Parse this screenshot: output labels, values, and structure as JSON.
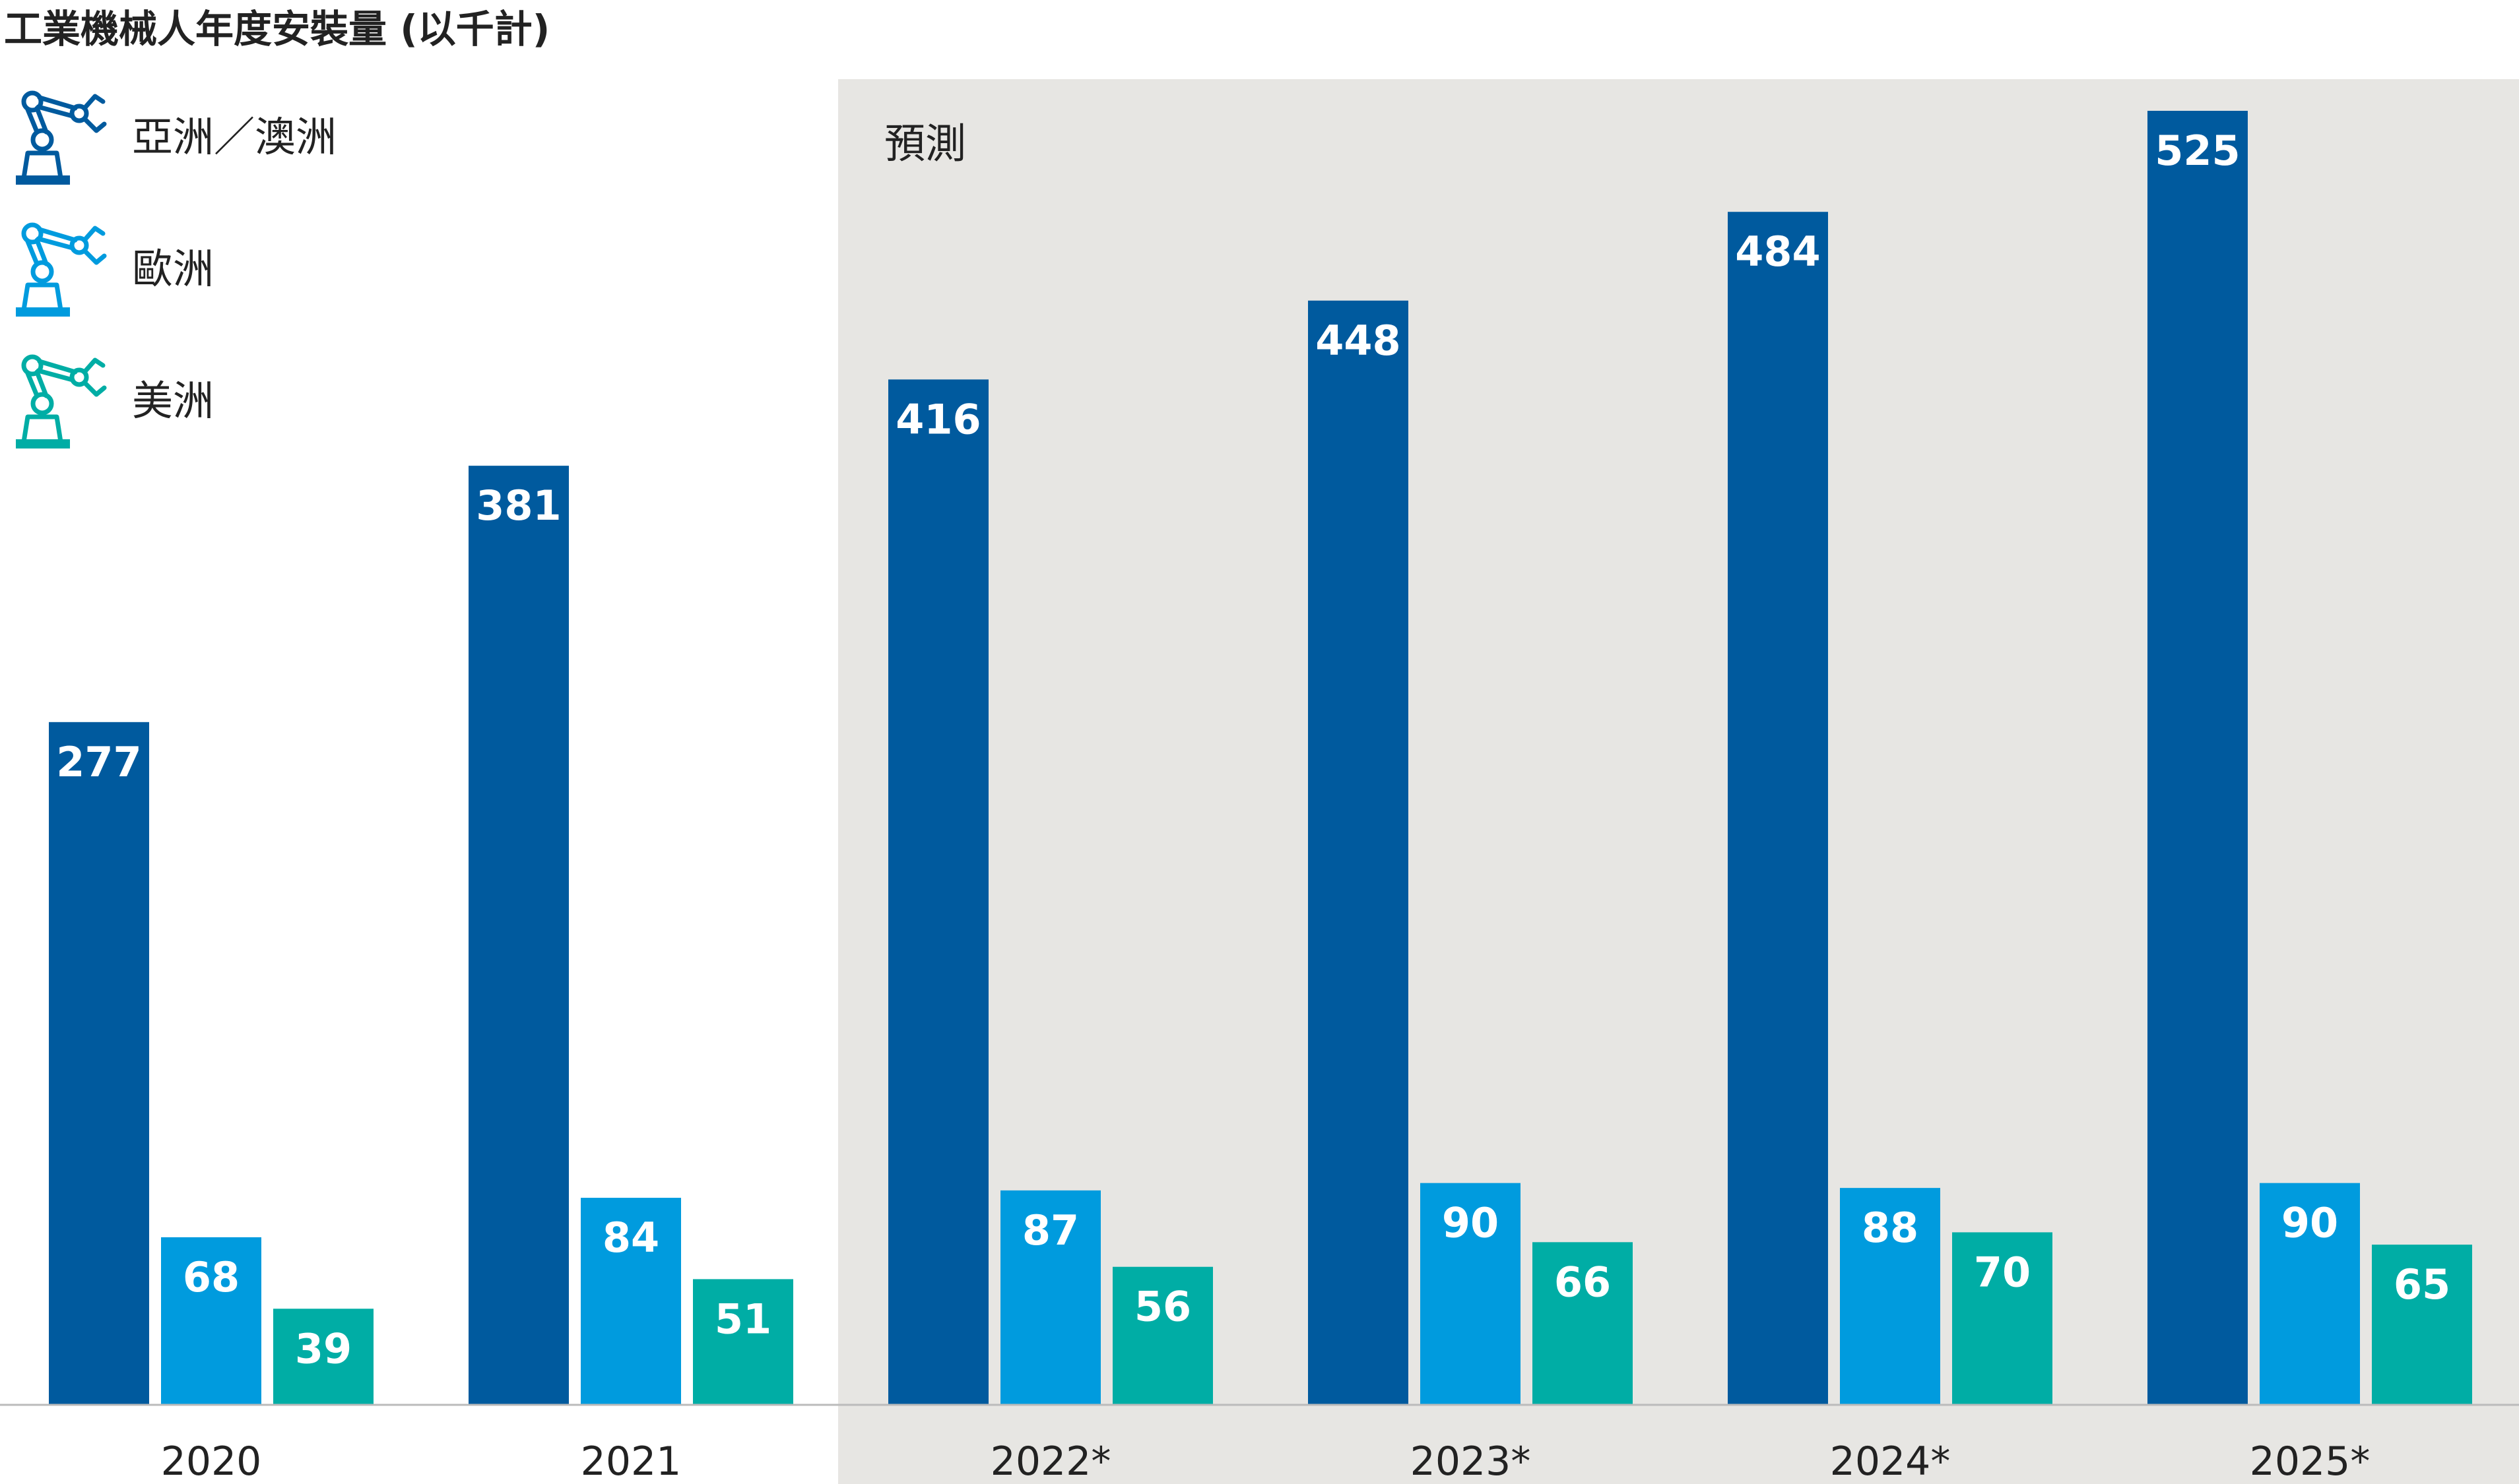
{
  "chart_data": {
    "type": "bar",
    "title": "工業機械人年度安裝量 (以千計)",
    "xlabel": "",
    "ylabel": "",
    "categories": [
      "2020",
      "2021",
      "2022*",
      "2023*",
      "2024*",
      "2025*"
    ],
    "series": [
      {
        "name": "亞洲／澳洲",
        "color": "#005A9E",
        "values": [
          277,
          381,
          416,
          448,
          484,
          525
        ]
      },
      {
        "name": "歐洲",
        "color": "#009BDE",
        "values": [
          68,
          84,
          87,
          90,
          88,
          90
        ]
      },
      {
        "name": "美洲",
        "color": "#00ADA5",
        "values": [
          39,
          51,
          56,
          66,
          70,
          65
        ]
      }
    ],
    "ylim": [
      0,
      525
    ],
    "grid": false,
    "legend": "top-left",
    "forecast": {
      "label": "預測",
      "from_category": "2022*",
      "background": "#E7E6E3"
    },
    "legend_icon": "robot-arm-icon"
  }
}
